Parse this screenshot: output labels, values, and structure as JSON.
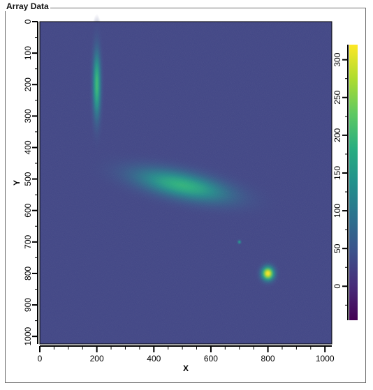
{
  "group": {
    "title": "Array Data"
  },
  "chart_data": {
    "type": "heatmap",
    "title": "",
    "xlabel": "X",
    "ylabel": "Y",
    "xlim": [
      0,
      1024
    ],
    "ylim": [
      0,
      1024
    ],
    "y_inverted": true,
    "x_ticks": [
      0,
      200,
      400,
      600,
      800,
      1000
    ],
    "y_ticks": [
      0,
      100,
      200,
      300,
      400,
      500,
      600,
      700,
      800,
      900,
      1000
    ],
    "colormap": "viridis",
    "colorbar": {
      "range": [
        -45,
        320
      ],
      "ticks": [
        0,
        50,
        100,
        150,
        200,
        250,
        300
      ],
      "orientation": "vertical",
      "position": "right"
    },
    "background_value": 30,
    "features": [
      {
        "name": "vertical-elongated-source",
        "x": 200,
        "y": 200,
        "peak": 200,
        "sigma_x": 10,
        "sigma_y": 75,
        "angle_deg": 0
      },
      {
        "name": "tilted-elliptical-source",
        "x": 500,
        "y": 520,
        "peak": 190,
        "sigma_x": 120,
        "sigma_y": 30,
        "angle_deg": 12
      },
      {
        "name": "faint-point-source",
        "x": 700,
        "y": 700,
        "peak": 150,
        "sigma_x": 4,
        "sigma_y": 4,
        "angle_deg": 0
      },
      {
        "name": "bright-round-source",
        "x": 800,
        "y": 800,
        "peak": 320,
        "sigma_x": 16,
        "sigma_y": 16,
        "angle_deg": 0
      }
    ]
  }
}
